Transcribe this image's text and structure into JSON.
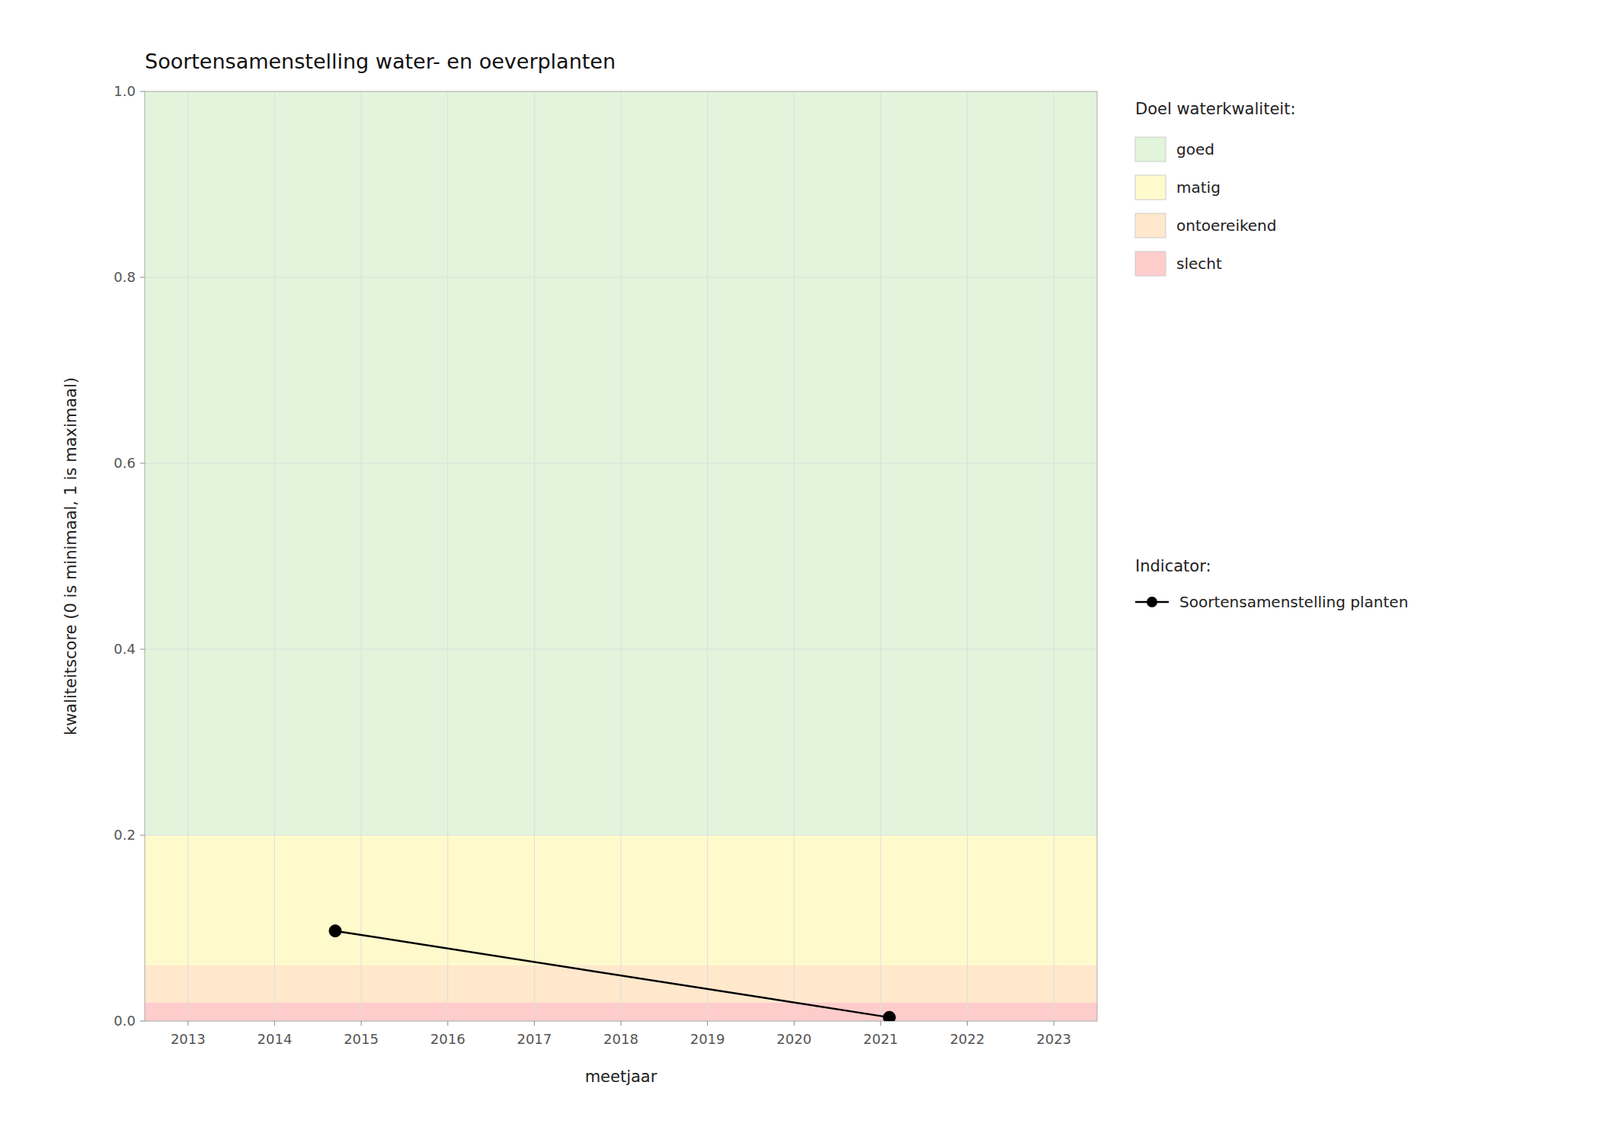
{
  "chart_data": {
    "type": "line",
    "title": "Soortensamenstelling water- en oeverplanten",
    "x_label": "meetjaar",
    "y_label": "kwaliteitscore (0 is minimaal, 1 is maximaal)",
    "x": [
      2014.7,
      2021.1
    ],
    "series": [
      {
        "name": "Soortensamenstelling planten",
        "color": "#000000",
        "marker": "circle",
        "values": [
          0.097,
          0.004
        ]
      }
    ],
    "xlim": [
      2012.5,
      2023.5
    ],
    "ylim": [
      0.0,
      1.0
    ],
    "xticks": [
      2013,
      2014,
      2015,
      2016,
      2017,
      2018,
      2019,
      2020,
      2021,
      2022,
      2023
    ],
    "yticks": [
      {
        "value": 0.0,
        "label": "0.0"
      },
      0.2,
      0.4,
      0.6,
      0.8,
      {
        "value": 1.0,
        "label": "1.0"
      }
    ],
    "grid": true,
    "legend": "right",
    "bands_title": "Doel waterkwaliteit:",
    "series_title": "Indicator:",
    "bands": [
      {
        "name": "goed",
        "color": "#E2F5DC",
        "ymin": 0.2,
        "ymax": 1.0
      },
      {
        "name": "matig",
        "color": "#FFFACC",
        "ymin": 0.06,
        "ymax": 0.2
      },
      {
        "name": "ontoereikend",
        "color": "#FFE8CC",
        "ymin": 0.02,
        "ymax": 0.06
      },
      {
        "name": "slecht",
        "color": "#FFCCCC",
        "ymin": 0.0,
        "ymax": 0.02
      }
    ]
  }
}
